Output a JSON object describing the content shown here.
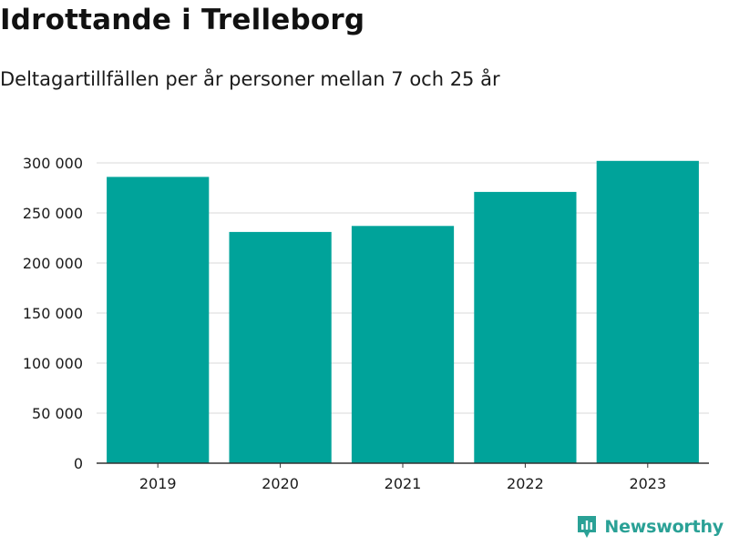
{
  "chart_data": {
    "type": "bar",
    "title": "Idrottande i Trelleborg",
    "subtitle": "Deltagartillfällen per år personer mellan 7 och 25 år",
    "categories": [
      "2019",
      "2020",
      "2021",
      "2022",
      "2023"
    ],
    "series": [
      {
        "values": [
          286000,
          231000,
          237000,
          271000,
          302000
        ],
        "color": "#00a39a"
      }
    ],
    "xlabel": "",
    "ylabel": "",
    "ylim": [
      0,
      300000
    ],
    "yticks": [
      0,
      50000,
      100000,
      150000,
      200000,
      250000,
      300000
    ],
    "ytick_labels": [
      "0",
      "50 000",
      "100 000",
      "150 000",
      "200 000",
      "250 000",
      "300 000"
    ],
    "grid": true,
    "legend": "none"
  },
  "branding": {
    "logo_text": "Newsworthy",
    "logo_icon": "newsworthy-logo-icon",
    "logo_color": "#2aa196"
  },
  "colors": {
    "bar": "#00a39a",
    "gridline": "#d9d9d9",
    "axis": "#333333",
    "text": "#1a1a1a"
  }
}
